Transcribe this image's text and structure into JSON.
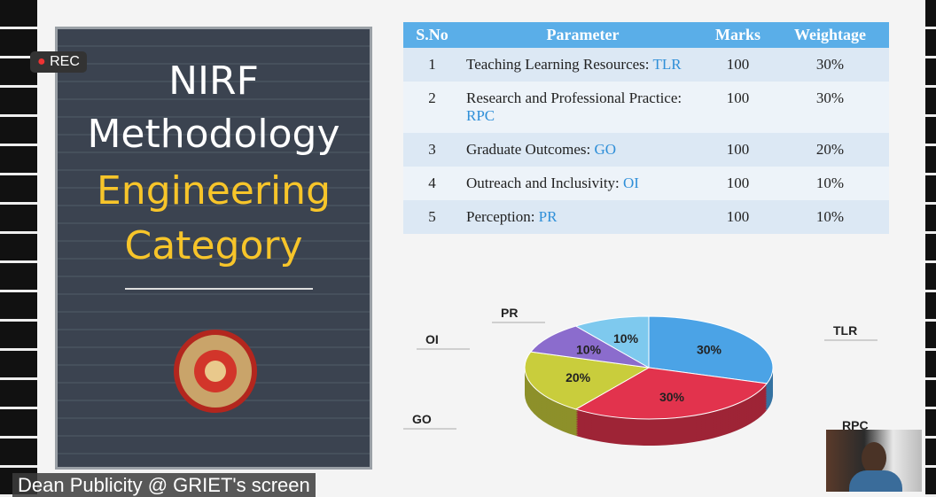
{
  "overlay": {
    "rec": "REC",
    "screen_owner": "Dean Publicity @ GRIET's screen"
  },
  "slide": {
    "title_lines": [
      "NIRF",
      "Methodology"
    ],
    "subtitle_lines": [
      "Engineering",
      "Category"
    ]
  },
  "table": {
    "header": [
      "S.No",
      "Parameter",
      "Marks",
      "Weightage"
    ],
    "rows": [
      {
        "sno": "1",
        "parameter": "Teaching Learning Resources:",
        "abbr": "TLR",
        "marks": "100",
        "weightage": "30%"
      },
      {
        "sno": "2",
        "parameter": "Research and Professional Practice:",
        "abbr": "RPC",
        "marks": "100",
        "weightage": "30%"
      },
      {
        "sno": "3",
        "parameter": "Graduate Outcomes:",
        "abbr": "GO",
        "marks": "100",
        "weightage": "20%"
      },
      {
        "sno": "4",
        "parameter": "Outreach and Inclusivity:",
        "abbr": "OI",
        "marks": "100",
        "weightage": "10%"
      },
      {
        "sno": "5",
        "parameter": "Perception:",
        "abbr": "PR",
        "marks": "100",
        "weightage": "10%"
      }
    ]
  },
  "chart_data": {
    "type": "pie",
    "categories": [
      "TLR",
      "RPC",
      "GO",
      "OI",
      "PR"
    ],
    "values": [
      30,
      30,
      20,
      10,
      10
    ],
    "value_labels": [
      "30%",
      "30%",
      "20%",
      "10%",
      "10%"
    ],
    "colors": [
      "#4ba3e6",
      "#e2334d",
      "#c9cd3c",
      "#8b6ccd",
      "#7ec9ee"
    ]
  }
}
